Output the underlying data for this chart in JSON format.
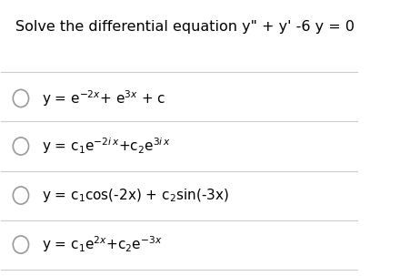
{
  "title": "Solve the differential equation y\" + y' -6 y = 0",
  "background_color": "#ffffff",
  "text_color": "#000000",
  "line_color": "#cccccc",
  "options": [
    "y = e$^{-2x}$+ e$^{3x}$ + c",
    "y = c$_1$e$^{-2i\\,x}$+c$_2$e$^{3i\\,x}$",
    "y = c$_1$cos(-2x) + c$_2$sin(-3x)",
    "y = c$_1$e$^{2x}$+c$_2$e$^{-3x}$"
  ],
  "figsize": [
    4.4,
    3.03
  ],
  "dpi": 100
}
